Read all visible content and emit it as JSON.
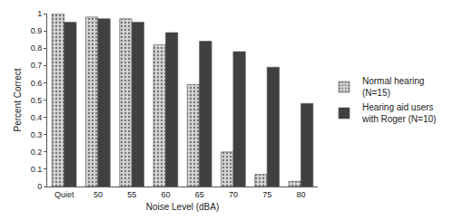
{
  "chart_data": {
    "type": "bar",
    "x_label": "Noise Level (dBA)",
    "y_label": "Percent Correct",
    "categories": [
      "Quiet",
      "50",
      "55",
      "60",
      "65",
      "70",
      "75",
      "80"
    ],
    "series": [
      {
        "name": "Normal hearing (N=15)",
        "color": "#d4d4d4",
        "marker": "dotted",
        "values": [
          1.0,
          0.98,
          0.97,
          0.82,
          0.59,
          0.2,
          0.07,
          0.03
        ]
      },
      {
        "name": "Hearing aid users with Roger (N=10)",
        "color": "#404040",
        "marker": "solid",
        "values": [
          0.95,
          0.97,
          0.95,
          0.89,
          0.84,
          0.78,
          0.69,
          0.48
        ]
      }
    ],
    "ylim": [
      0,
      1
    ],
    "yticks": [
      0,
      0.1,
      0.2,
      0.3,
      0.4,
      0.5,
      0.6,
      0.7,
      0.8,
      0.9,
      1
    ],
    "grid": false,
    "legend": "right"
  }
}
